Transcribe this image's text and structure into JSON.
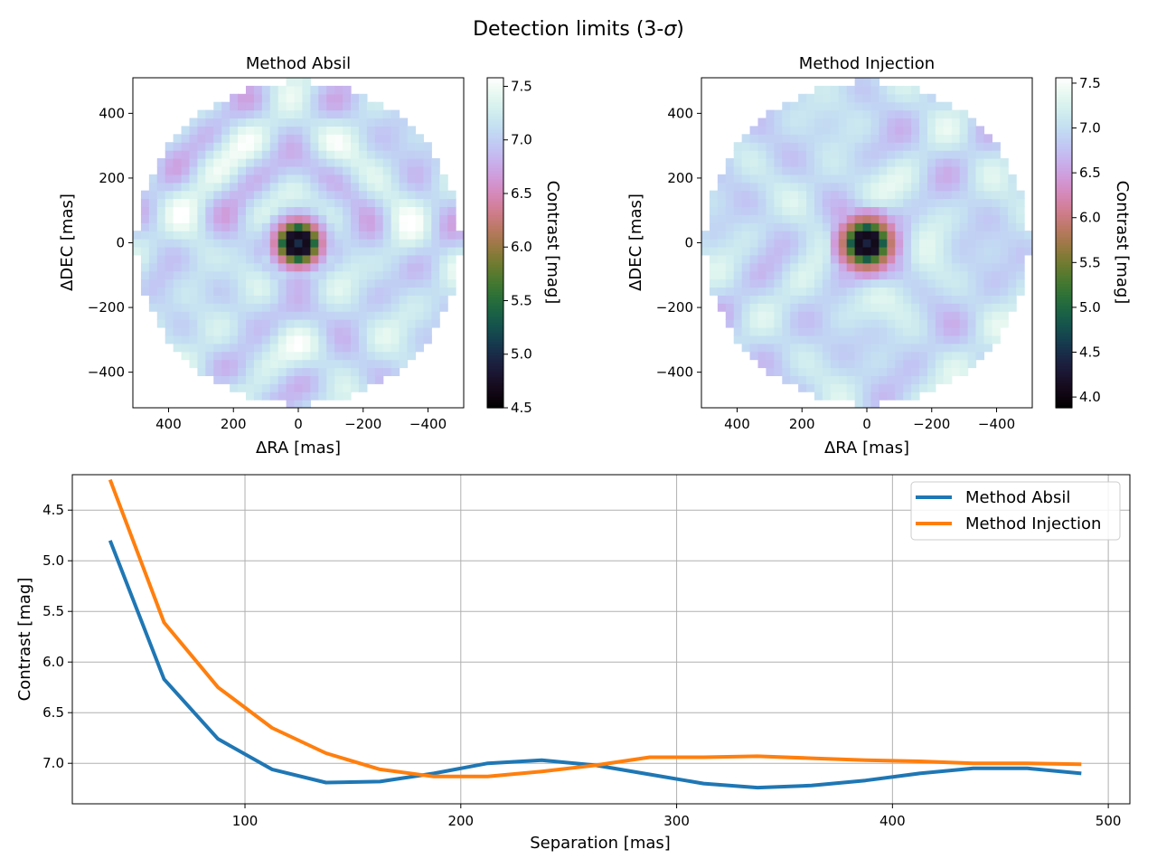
{
  "figure": {
    "suptitle_prefix": "Detection limits (3-",
    "suptitle_symbol": "σ",
    "suptitle_suffix": ")"
  },
  "chart_data": [
    {
      "type": "heatmap",
      "title": "Method Absil",
      "xlabel": "ΔRA [mas]",
      "ylabel": "ΔDEC [mas]",
      "xlim": [
        510,
        -510
      ],
      "ylim": [
        -510,
        510
      ],
      "xticks": [
        400,
        200,
        0,
        -200,
        -400
      ],
      "xtick_labels": [
        "400",
        "200",
        "0",
        "−200",
        "−400"
      ],
      "yticks": [
        400,
        200,
        0,
        -200,
        -400
      ],
      "ytick_labels": [
        "400",
        "200",
        "0",
        "−200",
        "−400"
      ],
      "colorbar": {
        "label": "Contrast [mag]",
        "range": [
          4.5,
          7.58
        ],
        "ticks": [
          4.5,
          5.0,
          5.5,
          6.0,
          6.5,
          7.0,
          7.5
        ],
        "tick_labels": [
          "4.5",
          "5.0",
          "5.5",
          "6.0",
          "6.5",
          "7.0",
          "7.5"
        ],
        "colormap": "cubehelix"
      },
      "field_radius_mas": 500,
      "profile_separation": [
        0,
        40,
        60,
        90,
        110,
        140,
        160,
        190,
        210,
        240,
        260,
        290,
        310,
        340,
        360,
        390,
        410,
        440,
        460,
        500
      ],
      "profile_contrast": [
        4.5,
        4.8,
        6.17,
        6.76,
        7.06,
        7.19,
        7.18,
        7.1,
        7.0,
        6.97,
        7.02,
        7.11,
        7.2,
        7.24,
        7.22,
        7.17,
        7.1,
        7.05,
        7.05,
        7.1
      ]
    },
    {
      "type": "heatmap",
      "title": "Method Injection",
      "xlabel": "ΔRA [mas]",
      "ylabel": "ΔDEC [mas]",
      "xlim": [
        510,
        -510
      ],
      "ylim": [
        -510,
        510
      ],
      "xticks": [
        400,
        200,
        0,
        -200,
        -400
      ],
      "xtick_labels": [
        "400",
        "200",
        "0",
        "−200",
        "−400"
      ],
      "yticks": [
        400,
        200,
        0,
        -200,
        -400
      ],
      "ytick_labels": [
        "400",
        "200",
        "0",
        "−200",
        "−400"
      ],
      "colorbar": {
        "label": "Contrast [mag]",
        "range": [
          3.88,
          7.56
        ],
        "ticks": [
          4.0,
          4.5,
          5.0,
          5.5,
          6.0,
          6.5,
          7.0,
          7.5
        ],
        "tick_labels": [
          "4.0",
          "4.5",
          "5.0",
          "5.5",
          "6.0",
          "6.5",
          "7.0",
          "7.5"
        ],
        "colormap": "cubehelix"
      },
      "field_radius_mas": 500,
      "profile_separation": [
        0,
        40,
        60,
        90,
        110,
        140,
        160,
        190,
        210,
        240,
        260,
        290,
        310,
        340,
        360,
        390,
        410,
        440,
        460,
        500
      ],
      "profile_contrast": [
        3.9,
        4.2,
        5.61,
        6.25,
        6.65,
        6.9,
        7.06,
        7.13,
        7.13,
        7.08,
        7.02,
        6.94,
        6.94,
        6.93,
        6.95,
        6.97,
        6.98,
        7.0,
        7.0,
        7.01
      ]
    },
    {
      "type": "line",
      "title": "",
      "xlabel": "Separation [mas]",
      "ylabel": "Contrast [mag]",
      "xlim": [
        20,
        510
      ],
      "ylim": [
        7.4,
        4.15
      ],
      "xticks": [
        100,
        200,
        300,
        400,
        500
      ],
      "xtick_labels": [
        "100",
        "200",
        "300",
        "400",
        "500"
      ],
      "yticks": [
        4.5,
        5.0,
        5.5,
        6.0,
        6.5,
        7.0
      ],
      "ytick_labels": [
        "4.5",
        "5.0",
        "5.5",
        "6.0",
        "6.5",
        "7.0"
      ],
      "grid": true,
      "legend": "top-right",
      "x": [
        37.5,
        62.5,
        87.5,
        112.5,
        137.5,
        162.5,
        187.5,
        212.5,
        237.5,
        262.5,
        287.5,
        312.5,
        337.5,
        362.5,
        387.5,
        412.5,
        437.5,
        462.5,
        487.5
      ],
      "series": [
        {
          "name": "Method Absil",
          "color": "#1f77b4",
          "values": [
            4.8,
            6.17,
            6.76,
            7.06,
            7.19,
            7.18,
            7.1,
            7.0,
            6.97,
            7.02,
            7.11,
            7.2,
            7.24,
            7.22,
            7.17,
            7.1,
            7.05,
            7.05,
            7.1
          ]
        },
        {
          "name": "Method Injection",
          "color": "#ff7f0e",
          "values": [
            4.2,
            5.61,
            6.25,
            6.65,
            6.9,
            7.06,
            7.13,
            7.13,
            7.08,
            7.02,
            6.94,
            6.94,
            6.93,
            6.95,
            6.97,
            6.98,
            7.0,
            7.0,
            7.01
          ]
        }
      ]
    }
  ]
}
